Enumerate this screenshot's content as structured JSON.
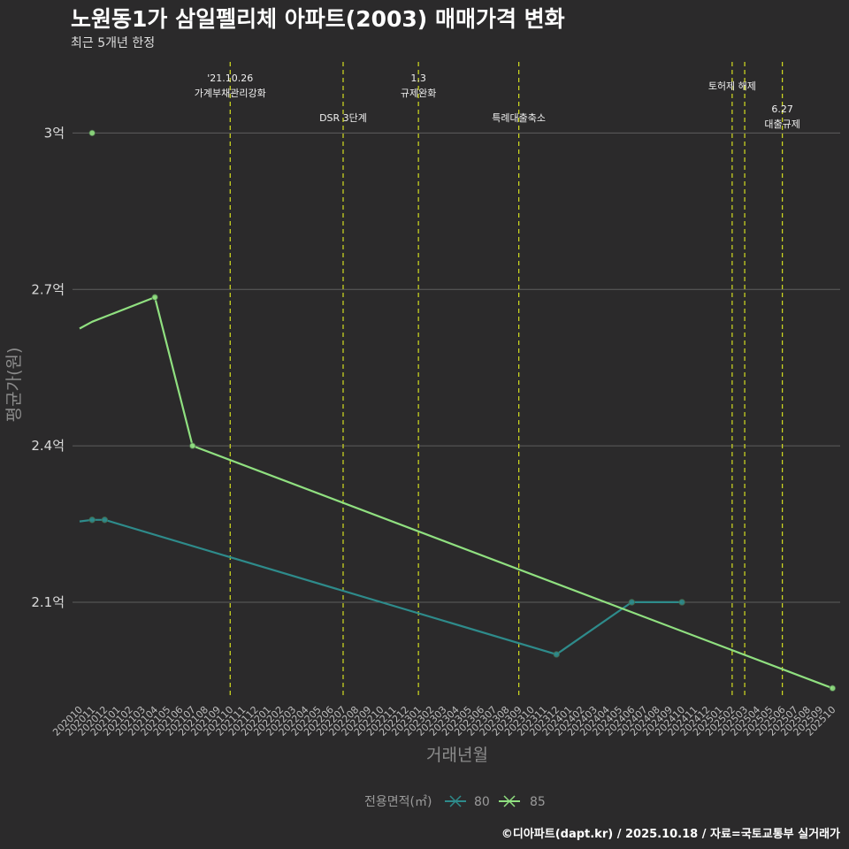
{
  "chart_data": {
    "type": "line",
    "title": "노원동1가 삼일펠리체 아파트(2003) 매매가격 변화",
    "subtitle": "최근 5개년 한정",
    "xlabel": "거래년월",
    "ylabel": "평균가(원)",
    "caption": "©디아파트(dapt.kr) / 2025.10.18 / 자료=국토교통부 실거래가",
    "ylim": [
      1.915,
      3.15
    ],
    "yticks": [
      {
        "value": 2.1,
        "label": "2.1억"
      },
      {
        "value": 2.4,
        "label": "2.4억"
      },
      {
        "value": 2.7,
        "label": "2.7억"
      },
      {
        "value": 3.0,
        "label": "3억"
      }
    ],
    "categories": [
      "202010",
      "202011",
      "202012",
      "202101",
      "202102",
      "202103",
      "202104",
      "202105",
      "202106",
      "202107",
      "202108",
      "202109",
      "202110",
      "202111",
      "202112",
      "202201",
      "202202",
      "202203",
      "202204",
      "202205",
      "202206",
      "202207",
      "202208",
      "202209",
      "202210",
      "202211",
      "202212",
      "202301",
      "202302",
      "202303",
      "202304",
      "202305",
      "202306",
      "202307",
      "202308",
      "202309",
      "202310",
      "202311",
      "202312",
      "202401",
      "202402",
      "202403",
      "202404",
      "202405",
      "202406",
      "202407",
      "202408",
      "202409",
      "202410",
      "202411",
      "202412",
      "202501",
      "202502",
      "202503",
      "202504",
      "202505",
      "202506",
      "202507",
      "202508",
      "202509",
      "202510"
    ],
    "grid": true,
    "legend": {
      "title": "전용면적(㎡)",
      "position": "bottom"
    },
    "series": [
      {
        "name": "80",
        "color": "#2e8b8b",
        "line": [
          [
            0,
            2.255
          ],
          [
            1,
            2.258
          ],
          [
            2,
            2.258
          ],
          [
            38,
            2.0
          ],
          [
            44,
            2.1
          ],
          [
            48,
            2.1
          ]
        ],
        "points": [
          [
            1,
            2.258
          ],
          [
            2,
            2.258
          ],
          [
            38,
            2.0
          ],
          [
            44,
            2.1
          ],
          [
            48,
            2.1
          ]
        ]
      },
      {
        "name": "85",
        "color": "#90e080",
        "line": [
          [
            0,
            2.625
          ],
          [
            1,
            2.638
          ],
          [
            6,
            2.685
          ],
          [
            9,
            2.4
          ],
          [
            60,
            1.935
          ]
        ],
        "points": [
          [
            1,
            3.0
          ],
          [
            6,
            2.685
          ],
          [
            9,
            2.4
          ],
          [
            60,
            1.935
          ]
        ]
      }
    ],
    "events": [
      {
        "pos": 12.0,
        "lines": [
          "'21.10.26",
          "가계부채관리강화"
        ],
        "row": 0
      },
      {
        "pos": 21.0,
        "lines": [
          "DSR 3단계"
        ],
        "row": 2
      },
      {
        "pos": 27.0,
        "lines": [
          "1.3",
          "규제완화"
        ],
        "row": 0
      },
      {
        "pos": 35.0,
        "lines": [
          "특례대출축소"
        ],
        "row": 2
      },
      {
        "pos": 52.0,
        "lines": [
          "토허제 해제"
        ],
        "row": 1
      },
      {
        "pos": 53.0,
        "lines": [],
        "row": 0
      },
      {
        "pos": 56.0,
        "lines": [
          "6.27",
          "대출규제"
        ],
        "row": 3
      }
    ]
  }
}
